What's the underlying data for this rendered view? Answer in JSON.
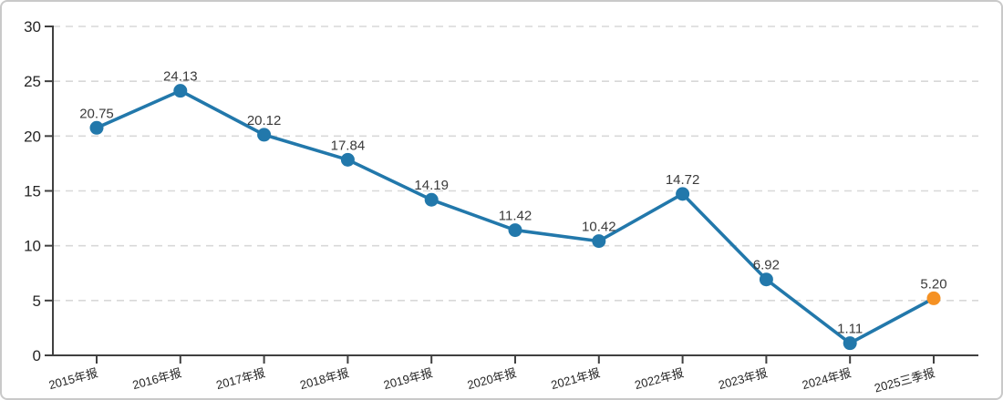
{
  "chart_data": {
    "type": "line",
    "title": "",
    "xlabel": "",
    "ylabel": "",
    "categories": [
      "2015年报",
      "2016年报",
      "2017年报",
      "2018年报",
      "2019年报",
      "2020年报",
      "2021年报",
      "2022年报",
      "2023年报",
      "2024年报",
      "2025三季报"
    ],
    "values": [
      20.75,
      24.13,
      20.12,
      17.84,
      14.19,
      11.42,
      10.42,
      14.72,
      6.92,
      1.11,
      5.2
    ],
    "data_labels": [
      "20.75",
      "24.13",
      "20.12",
      "17.84",
      "14.19",
      "11.42",
      "10.42",
      "14.72",
      "6.92",
      "1.11",
      "5.20"
    ],
    "ylim": [
      0,
      30
    ],
    "y_ticks": [
      0,
      5,
      10,
      15,
      20,
      25,
      30
    ],
    "grid": "horizontal-dashed",
    "legend": "none",
    "x_label_rotation_deg": -15,
    "highlight_last_point": true,
    "colors": {
      "line": "#2278ab",
      "marker": "#2278ab",
      "last_marker": "#f59123",
      "axis": "#404040",
      "gridline": "#d8d8d8",
      "data_label": "#3a3a3a",
      "tick_label": "#262626",
      "card_border": "#c9c9c9",
      "background": "#ffffff"
    }
  }
}
